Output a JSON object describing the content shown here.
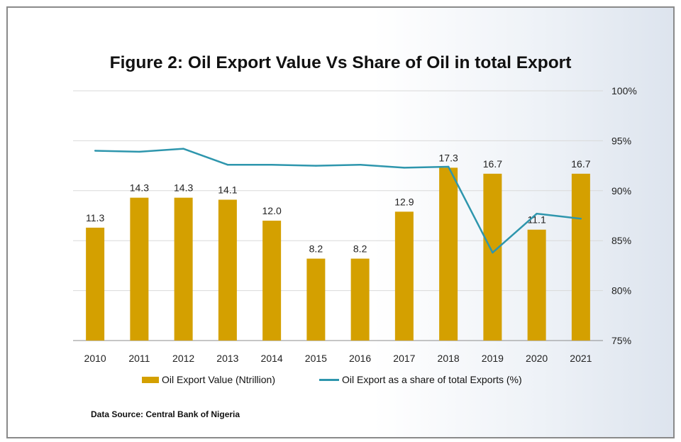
{
  "chart_data": {
    "type": "bar",
    "title": "Figure 2: Oil Export Value Vs Share of Oil in total Export",
    "categories": [
      "2010",
      "2011",
      "2012",
      "2013",
      "2014",
      "2015",
      "2016",
      "2017",
      "2018",
      "2019",
      "2020",
      "2021"
    ],
    "series": [
      {
        "name": "Oil Export Value (Ntrillion)",
        "type": "bar",
        "axis": "left",
        "color": "#d4a000",
        "values": [
          11.3,
          14.3,
          14.3,
          14.1,
          12.0,
          8.2,
          8.2,
          12.9,
          17.3,
          16.7,
          11.1,
          16.7
        ],
        "labels": [
          "11.3",
          "14.3",
          "14.3",
          "14.1",
          "12.0",
          "8.2",
          "8.2",
          "12.9",
          "17.3",
          "16.7",
          "11.1",
          "16.7"
        ]
      },
      {
        "name": "Oil Export as a share of total Exports (%)",
        "type": "line",
        "axis": "right",
        "color": "#2e96ad",
        "values": [
          94.0,
          93.9,
          94.2,
          92.6,
          92.6,
          92.5,
          92.6,
          92.3,
          92.4,
          83.8,
          87.7,
          87.2
        ]
      }
    ],
    "left_axis": {
      "range": [
        0,
        25
      ],
      "shown": false
    },
    "right_axis": {
      "range": [
        75,
        100
      ],
      "ticks": [
        100,
        95,
        90,
        85,
        80,
        75
      ],
      "tick_labels": [
        "100%",
        "95%",
        "90%",
        "85%",
        "80%",
        "75%"
      ]
    },
    "grid": true,
    "legend_position": "bottom",
    "source_note": "Data Source: Central Bank of Nigeria"
  }
}
